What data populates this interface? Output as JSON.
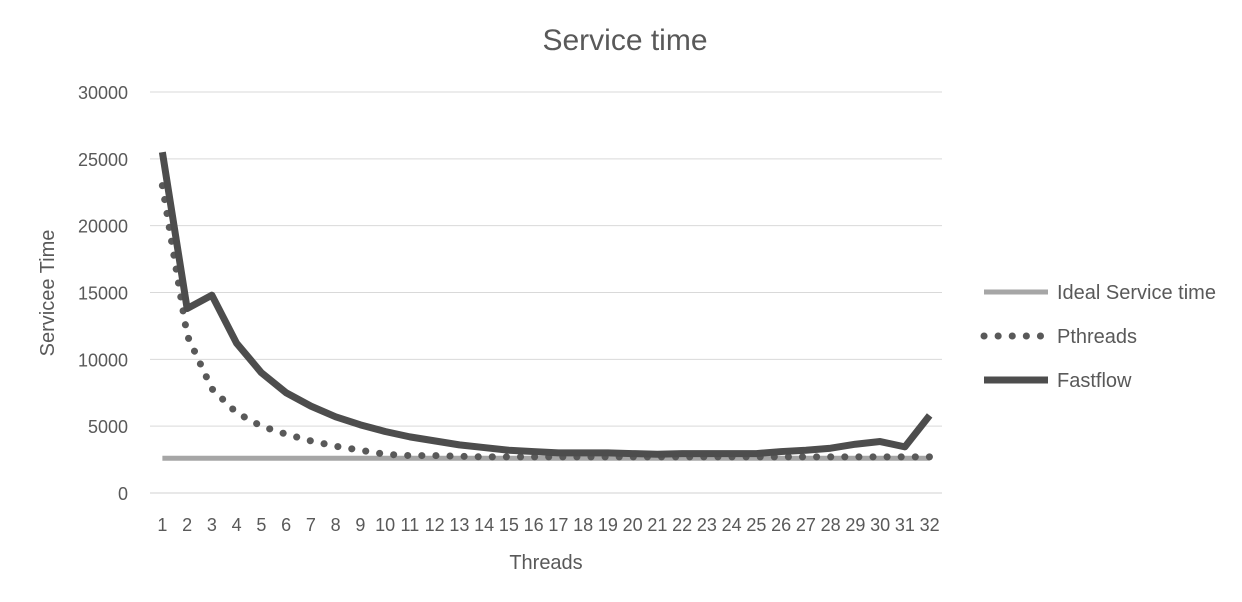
{
  "chart_data": {
    "type": "line",
    "title": "Service time",
    "xlabel": "Threads",
    "ylabel": "Servicee Time",
    "ylim": [
      0,
      30000
    ],
    "yticks": [
      0,
      5000,
      10000,
      15000,
      20000,
      25000,
      30000
    ],
    "grid": true,
    "legend_position": "right",
    "categories": [
      "1",
      "2",
      "3",
      "4",
      "5",
      "6",
      "7",
      "8",
      "9",
      "10",
      "11",
      "12",
      "13",
      "14",
      "15",
      "16",
      "17",
      "18",
      "19",
      "20",
      "21",
      "22",
      "23",
      "24",
      "25",
      "26",
      "27",
      "28",
      "29",
      "30",
      "31",
      "32"
    ],
    "series": [
      {
        "name": "Ideal Service time",
        "style": "solid-light",
        "color": "#a6a6a6",
        "values": [
          2600,
          2600,
          2600,
          2600,
          2600,
          2600,
          2600,
          2600,
          2600,
          2600,
          2600,
          2600,
          2600,
          2600,
          2600,
          2600,
          2600,
          2600,
          2600,
          2600,
          2600,
          2600,
          2600,
          2600,
          2600,
          2600,
          2600,
          2600,
          2600,
          2600,
          2600,
          2600
        ]
      },
      {
        "name": "Pthreads",
        "style": "dotted",
        "color": "#595959",
        "values": [
          23000,
          11800,
          7800,
          6000,
          5000,
          4400,
          3900,
          3500,
          3200,
          2900,
          2800,
          2800,
          2750,
          2700,
          2700,
          2700,
          2700,
          2700,
          2700,
          2700,
          2700,
          2700,
          2700,
          2700,
          2700,
          2700,
          2700,
          2700,
          2700,
          2700,
          2700,
          2700
        ]
      },
      {
        "name": "Fastflow",
        "style": "solid-dark",
        "color": "#4d4d4d",
        "values": [
          25500,
          13800,
          14800,
          11200,
          9000,
          7500,
          6500,
          5700,
          5100,
          4600,
          4200,
          3900,
          3600,
          3400,
          3200,
          3100,
          3000,
          3000,
          3000,
          2950,
          2900,
          2950,
          2950,
          2950,
          2950,
          3100,
          3200,
          3350,
          3650,
          3850,
          3450,
          5800
        ]
      }
    ]
  }
}
